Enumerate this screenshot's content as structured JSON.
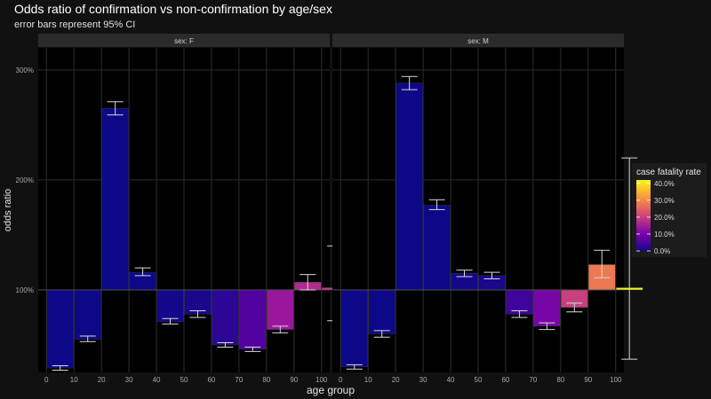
{
  "title": "Odds ratio of confirmation vs non-confirmation by age/sex",
  "subtitle": "error bars represent 95% CI",
  "chart_data": {
    "type": "bar",
    "xlabel": "age group",
    "ylabel": "odds ratio",
    "y_ticks": [
      100,
      200,
      300
    ],
    "y_tick_labels": [
      "100%",
      "200%",
      "300%"
    ],
    "ylim": [
      25,
      320
    ],
    "baseline": 100,
    "x_ticks": [
      0,
      10,
      20,
      30,
      40,
      50,
      60,
      70,
      80,
      90,
      100
    ],
    "x_tick_labels": [
      "0",
      "10",
      "20",
      "30",
      "40",
      "50",
      "60",
      "70",
      "80",
      "90",
      "100"
    ],
    "xlim": [
      -3,
      103
    ],
    "facets": [
      {
        "label": "sex: F",
        "bars": [
          {
            "age": 0,
            "value": 29,
            "ci": [
              27,
              31
            ],
            "cfr": 0.0
          },
          {
            "age": 10,
            "value": 55,
            "ci": [
              53,
              58
            ],
            "cfr": 0.0
          },
          {
            "age": 20,
            "value": 265,
            "ci": [
              259,
              271
            ],
            "cfr": 0.0
          },
          {
            "age": 30,
            "value": 116,
            "ci": [
              113,
              120
            ],
            "cfr": 0.0
          },
          {
            "age": 40,
            "value": 71,
            "ci": [
              69,
              74
            ],
            "cfr": 0.5
          },
          {
            "age": 50,
            "value": 78,
            "ci": [
              75,
              81
            ],
            "cfr": 1.0
          },
          {
            "age": 60,
            "value": 50,
            "ci": [
              48,
              52
            ],
            "cfr": 2.5
          },
          {
            "age": 70,
            "value": 46,
            "ci": [
              44,
              48
            ],
            "cfr": 6.0
          },
          {
            "age": 80,
            "value": 64,
            "ci": [
              61,
              67
            ],
            "cfr": 14.0
          },
          {
            "age": 90,
            "value": 107,
            "ci": [
              100,
              114
            ],
            "cfr": 17.0
          },
          {
            "age": 100,
            "value": 102,
            "ci": [
              72,
              140
            ],
            "cfr": 20.0
          }
        ]
      },
      {
        "label": "sex: M",
        "bars": [
          {
            "age": 0,
            "value": 30,
            "ci": [
              28,
              32
            ],
            "cfr": 0.0
          },
          {
            "age": 10,
            "value": 60,
            "ci": [
              57,
              63
            ],
            "cfr": 0.0
          },
          {
            "age": 20,
            "value": 288,
            "ci": [
              282,
              294
            ],
            "cfr": 0.0
          },
          {
            "age": 30,
            "value": 177,
            "ci": [
              173,
              182
            ],
            "cfr": 0.0
          },
          {
            "age": 40,
            "value": 115,
            "ci": [
              112,
              118
            ],
            "cfr": 0.5
          },
          {
            "age": 50,
            "value": 113,
            "ci": [
              110,
              116
            ],
            "cfr": 1.0
          },
          {
            "age": 60,
            "value": 78,
            "ci": [
              75,
              81
            ],
            "cfr": 4.0
          },
          {
            "age": 70,
            "value": 67,
            "ci": [
              64,
              70
            ],
            "cfr": 10.0
          },
          {
            "age": 80,
            "value": 84,
            "ci": [
              80,
              88
            ],
            "cfr": 20.0
          },
          {
            "age": 90,
            "value": 123,
            "ci": [
              111,
              136
            ],
            "cfr": 28.0
          },
          {
            "age": 100,
            "value": 102,
            "ci": [
              37,
              220
            ],
            "cfr": 42.0
          }
        ]
      }
    ],
    "legend": {
      "title": "case fatality rate",
      "position": "right",
      "min": 0,
      "max": 42,
      "ticks": [
        0,
        10,
        20,
        30,
        40
      ],
      "tick_labels": [
        "0.0%",
        "10.0%",
        "20.0%",
        "30.0%",
        "40.0%"
      ],
      "colors": [
        "#0d0887",
        "#41049d",
        "#6a00a8",
        "#8f0da4",
        "#b12a90",
        "#cc4778",
        "#e16462",
        "#f2844b",
        "#fca636",
        "#fcce25",
        "#f0f921"
      ]
    },
    "colors": {
      "background": "#000000",
      "grid": "#2e2e2e",
      "strip": "#2b2b2b",
      "baseline": "#555555",
      "errorbar": "#d8d8d8",
      "text": "#e6e6e6",
      "tick_text": "#a8a8a8"
    }
  }
}
